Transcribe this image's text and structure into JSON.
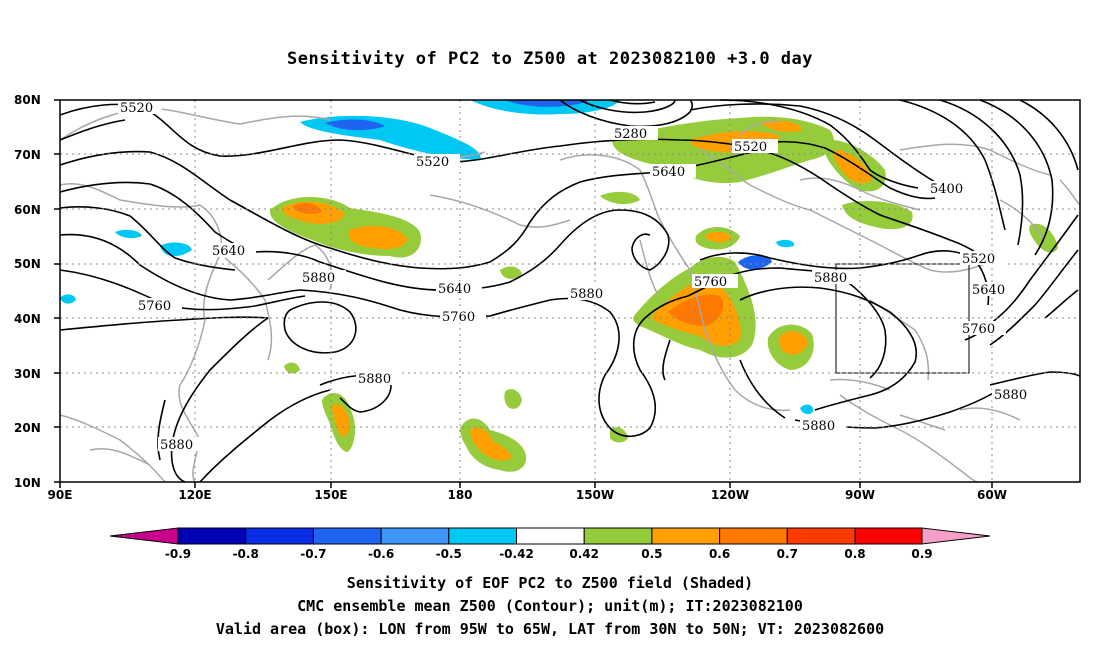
{
  "title": "Sensitivity of PC2 to Z500 at 2023082100 +3.0 day",
  "lat_labels": [
    "80N",
    "70N",
    "60N",
    "50N",
    "40N",
    "30N",
    "20N",
    "10N"
  ],
  "lon_labels": [
    "90E",
    "120E",
    "150E",
    "180",
    "150W",
    "120W",
    "90W",
    "60W"
  ],
  "colorbar": {
    "levels": [
      "-0.9",
      "-0.8",
      "-0.7",
      "-0.6",
      "-0.5",
      "-0.42",
      "0.42",
      "0.5",
      "0.6",
      "0.7",
      "0.8",
      "0.9"
    ],
    "colors": [
      "#c8008c",
      "#0000b4",
      "#0a2ee6",
      "#1e64f0",
      "#3c96f5",
      "#00c8f5",
      "#ffffff",
      "#96cc3c",
      "#ffa000",
      "#ff7800",
      "#ff3c00",
      "#ff0000",
      "#f5a0c8"
    ]
  },
  "contour_labels": [
    {
      "text": "5520"
    },
    {
      "text": "5520"
    },
    {
      "text": "5280"
    },
    {
      "text": "5520"
    },
    {
      "text": "5640"
    },
    {
      "text": "5400"
    },
    {
      "text": "5640"
    },
    {
      "text": "5880"
    },
    {
      "text": "5640"
    },
    {
      "text": "5760"
    },
    {
      "text": "5880"
    },
    {
      "text": "5760"
    },
    {
      "text": "5880"
    },
    {
      "text": "5520"
    },
    {
      "text": "5640"
    },
    {
      "text": "5760"
    },
    {
      "text": "5760"
    },
    {
      "text": "5880"
    },
    {
      "text": "5880"
    },
    {
      "text": "5880"
    },
    {
      "text": "5880"
    }
  ],
  "valid_box": {
    "lon_from": "95W",
    "lon_to": "65W",
    "lat_from": "30N",
    "lat_to": "50N"
  },
  "captions": {
    "line1": "Sensitivity of EOF PC2 to Z500 field (Shaded)",
    "line2": "CMC ensemble mean Z500 (Contour); unit(m); IT:2023082100",
    "line3": "Valid area (box): LON from 95W to 65W, LAT from 30N to 50N; VT: 2023082600"
  },
  "colors": {
    "land": "#a8a8a8",
    "contour": "#000000",
    "green": "#96cc3c",
    "orange": "#ffa000",
    "darkorange": "#ff7800",
    "cyan": "#00c8f5",
    "blue": "#3c96f5",
    "darkblue": "#1e64f0"
  }
}
